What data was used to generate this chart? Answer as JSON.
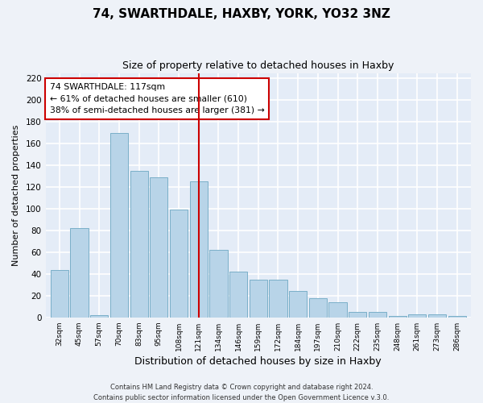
{
  "title": "74, SWARTHDALE, HAXBY, YORK, YO32 3NZ",
  "subtitle": "Size of property relative to detached houses in Haxby",
  "xlabel": "Distribution of detached houses by size in Haxby",
  "ylabel": "Number of detached properties",
  "categories": [
    "32sqm",
    "45sqm",
    "57sqm",
    "70sqm",
    "83sqm",
    "95sqm",
    "108sqm",
    "121sqm",
    "134sqm",
    "146sqm",
    "159sqm",
    "172sqm",
    "184sqm",
    "197sqm",
    "210sqm",
    "222sqm",
    "235sqm",
    "248sqm",
    "261sqm",
    "273sqm",
    "286sqm"
  ],
  "values": [
    44,
    82,
    2,
    170,
    135,
    129,
    99,
    125,
    62,
    42,
    35,
    35,
    24,
    18,
    14,
    5,
    5,
    1,
    3,
    3,
    1
  ],
  "bar_color": "#b8d4e8",
  "bar_edge_color": "#7aafc8",
  "vline_x_idx": 7,
  "vline_color": "#cc0000",
  "annotation_text": "74 SWARTHDALE: 117sqm\n← 61% of detached houses are smaller (610)\n38% of semi-detached houses are larger (381) →",
  "annotation_box_color": "white",
  "annotation_box_edge": "#cc0000",
  "ylim": [
    0,
    225
  ],
  "yticks": [
    0,
    20,
    40,
    60,
    80,
    100,
    120,
    140,
    160,
    180,
    200,
    220
  ],
  "footer1": "Contains HM Land Registry data © Crown copyright and database right 2024.",
  "footer2": "Contains public sector information licensed under the Open Government Licence v.3.0.",
  "bg_color": "#eef2f8",
  "plot_bg_color": "#e4ecf7",
  "grid_color": "white"
}
